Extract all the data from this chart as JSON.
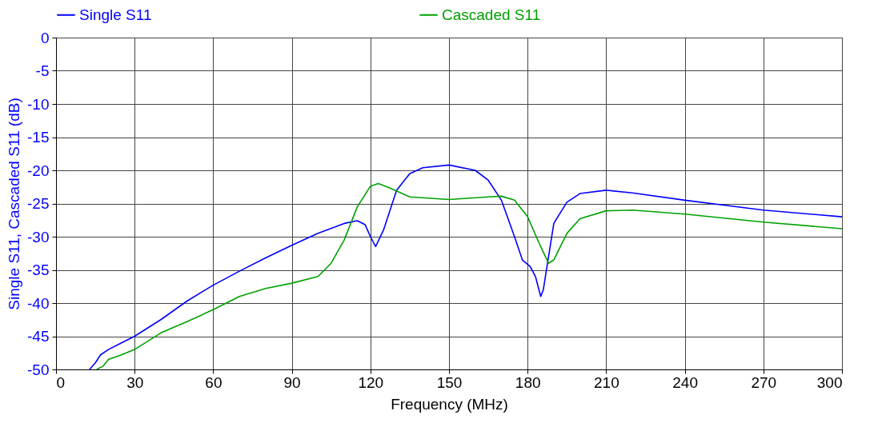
{
  "chart_data": {
    "type": "line",
    "xlabel": "Frequency (MHz)",
    "ylabel": "Single S11, Cascaded S11 (dB)",
    "xlim": [
      0,
      300
    ],
    "ylim": [
      -50,
      0
    ],
    "xticks": [
      0,
      30,
      60,
      90,
      120,
      150,
      180,
      210,
      240,
      270,
      300
    ],
    "yticks": [
      -50,
      -45,
      -40,
      -35,
      -30,
      -25,
      -20,
      -15,
      -10,
      -5,
      0
    ],
    "grid": true,
    "legend": "top",
    "line_style": "solid",
    "marker": "none",
    "series": [
      {
        "name": "Single S11",
        "color": "#0000ff",
        "x": [
          12.8,
          15,
          17,
          20,
          25,
          30,
          40,
          50,
          60,
          70,
          80,
          90,
          100,
          110,
          115,
          118,
          120,
          122,
          125,
          130,
          135,
          140,
          150,
          160,
          165,
          170,
          175,
          178,
          181,
          183,
          185,
          186,
          188,
          190,
          195,
          200,
          210,
          220,
          240,
          270,
          300
        ],
        "values": [
          -50,
          -49,
          -47.8,
          -47,
          -46,
          -45,
          -42.5,
          -39.7,
          -37.3,
          -35.2,
          -33.2,
          -31.3,
          -29.5,
          -28,
          -27.6,
          -28.2,
          -30,
          -31.5,
          -29,
          -23,
          -20.5,
          -19.6,
          -19.2,
          -20,
          -21.5,
          -24.5,
          -30,
          -33.5,
          -34.5,
          -36,
          -39,
          -38,
          -33,
          -28,
          -24.8,
          -23.5,
          -23,
          -23.4,
          -24.5,
          -26,
          -27
        ]
      },
      {
        "name": "Cascaded S11",
        "color": "#00a000",
        "x": [
          15.5,
          18,
          20,
          25,
          30,
          40,
          50,
          60,
          70,
          80,
          90,
          100,
          105,
          110,
          115,
          120,
          123,
          127,
          135,
          150,
          165,
          170,
          175,
          180,
          185,
          188,
          190,
          195,
          200,
          210,
          220,
          240,
          270,
          300
        ],
        "values": [
          -50,
          -49.5,
          -48.5,
          -47.8,
          -47,
          -44.5,
          -42.8,
          -41,
          -39,
          -37.8,
          -37,
          -36,
          -34,
          -30.5,
          -25.5,
          -22.4,
          -22,
          -22.6,
          -24,
          -24.4,
          -24,
          -23.9,
          -24.5,
          -27,
          -31.5,
          -34,
          -33.5,
          -29.5,
          -27.3,
          -26.1,
          -26,
          -26.6,
          -27.8,
          -28.8
        ]
      }
    ]
  }
}
